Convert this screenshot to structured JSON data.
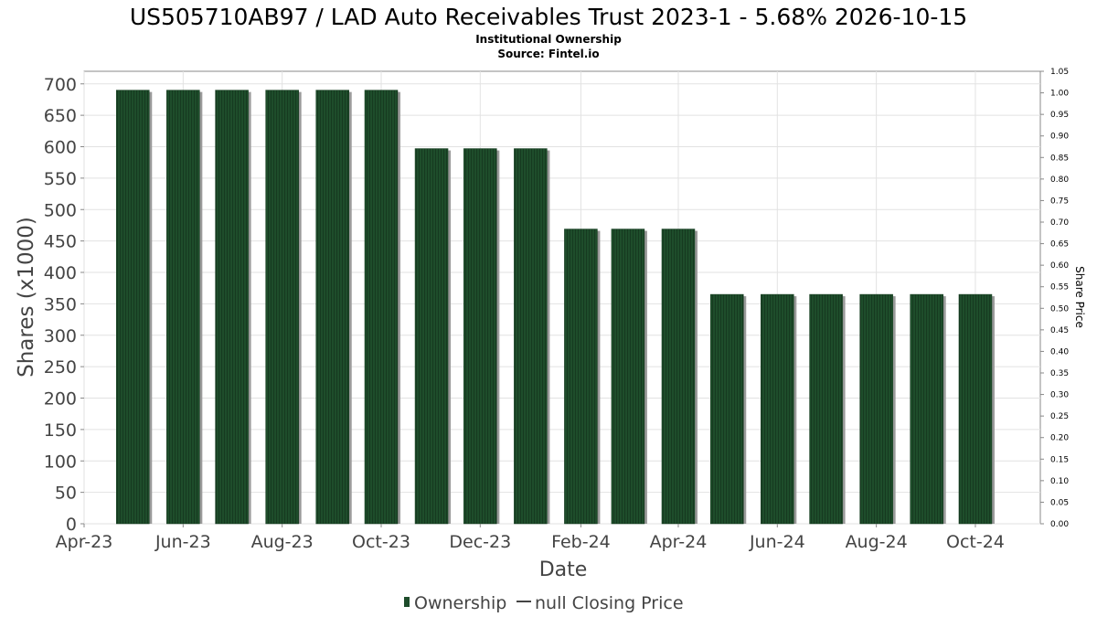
{
  "chart_data": {
    "type": "bar",
    "title": "US505710AB97 / LAD Auto Receivables Trust 2023-1 - 5.68% 2026-10-15",
    "subtitle": "Institutional Ownership",
    "source": "Source: Fintel.io",
    "xlabel": "Date",
    "ylabel": "Shares (x1000)",
    "y2label": "Share Price",
    "ylim": [
      0,
      720
    ],
    "y2lim": [
      0,
      1.05
    ],
    "xlim": [
      "2023-04-01",
      "2024-11-10"
    ],
    "yticks": [
      0,
      50,
      100,
      150,
      200,
      250,
      300,
      350,
      400,
      450,
      500,
      550,
      600,
      650,
      700
    ],
    "y2ticks": [
      "0.00",
      "0.05",
      "0.10",
      "0.15",
      "0.20",
      "0.25",
      "0.30",
      "0.35",
      "0.40",
      "0.45",
      "0.50",
      "0.55",
      "0.60",
      "0.65",
      "0.70",
      "0.75",
      "0.80",
      "0.85",
      "0.90",
      "0.95",
      "1.00",
      "1.05"
    ],
    "xticks": [
      {
        "label": "Apr-23",
        "date": "2023-04-01"
      },
      {
        "label": "Jun-23",
        "date": "2023-06-01"
      },
      {
        "label": "Aug-23",
        "date": "2023-08-01"
      },
      {
        "label": "Oct-23",
        "date": "2023-10-01"
      },
      {
        "label": "Dec-23",
        "date": "2023-12-01"
      },
      {
        "label": "Feb-24",
        "date": "2024-02-01"
      },
      {
        "label": "Apr-24",
        "date": "2024-04-01"
      },
      {
        "label": "Jun-24",
        "date": "2024-06-01"
      },
      {
        "label": "Aug-24",
        "date": "2024-08-01"
      },
      {
        "label": "Oct-24",
        "date": "2024-10-01"
      }
    ],
    "series": [
      {
        "name": "Ownership",
        "color": "#1e4d2b",
        "dates": [
          "2023-05-01",
          "2023-06-01",
          "2023-07-01",
          "2023-08-01",
          "2023-09-01",
          "2023-10-01",
          "2023-11-01",
          "2023-12-01",
          "2024-01-01",
          "2024-02-01",
          "2024-03-01",
          "2024-04-01",
          "2024-05-01",
          "2024-06-01",
          "2024-07-01",
          "2024-08-01",
          "2024-09-01",
          "2024-10-01"
        ],
        "values": [
          690,
          690,
          690,
          690,
          690,
          690,
          597,
          597,
          597,
          469,
          469,
          469,
          365,
          365,
          365,
          365,
          365,
          365
        ]
      }
    ],
    "legend": {
      "position": "bottom",
      "items": [
        {
          "label": "Ownership",
          "symbol": "bar",
          "color": "#1e4d2b"
        },
        {
          "label": "null Closing Price",
          "symbol": "line",
          "color": "#444444"
        }
      ]
    },
    "grid": true
  }
}
